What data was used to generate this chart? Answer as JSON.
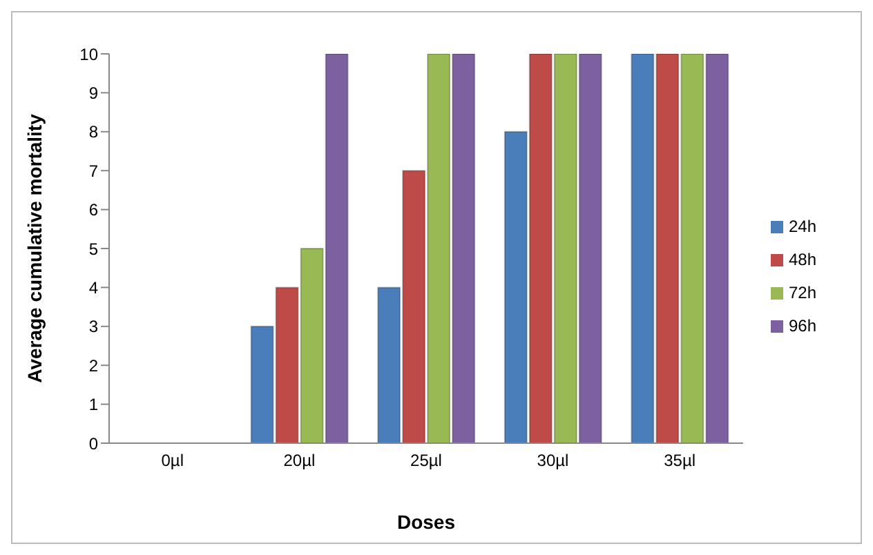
{
  "chart_data": {
    "type": "bar",
    "xlabel": "Doses",
    "ylabel": "Average cumulative  mortality",
    "categories": [
      "0µl",
      "20µl",
      "25µl",
      "30µl",
      "35µl"
    ],
    "series": [
      {
        "name": "24h",
        "color": "#4a7ebb",
        "values": [
          0,
          3,
          4,
          8,
          10
        ]
      },
      {
        "name": "48h",
        "color": "#be4b48",
        "values": [
          0,
          4,
          7,
          10,
          10
        ]
      },
      {
        "name": "72h",
        "color": "#98b954",
        "values": [
          0,
          5,
          10,
          10,
          10
        ]
      },
      {
        "name": "96h",
        "color": "#7d60a0",
        "values": [
          0,
          10,
          10,
          10,
          10
        ]
      }
    ],
    "ylim": [
      0,
      10
    ],
    "yticks": [
      0,
      1,
      2,
      3,
      4,
      5,
      6,
      7,
      8,
      9,
      10
    ],
    "grid": false,
    "legend": "right"
  }
}
